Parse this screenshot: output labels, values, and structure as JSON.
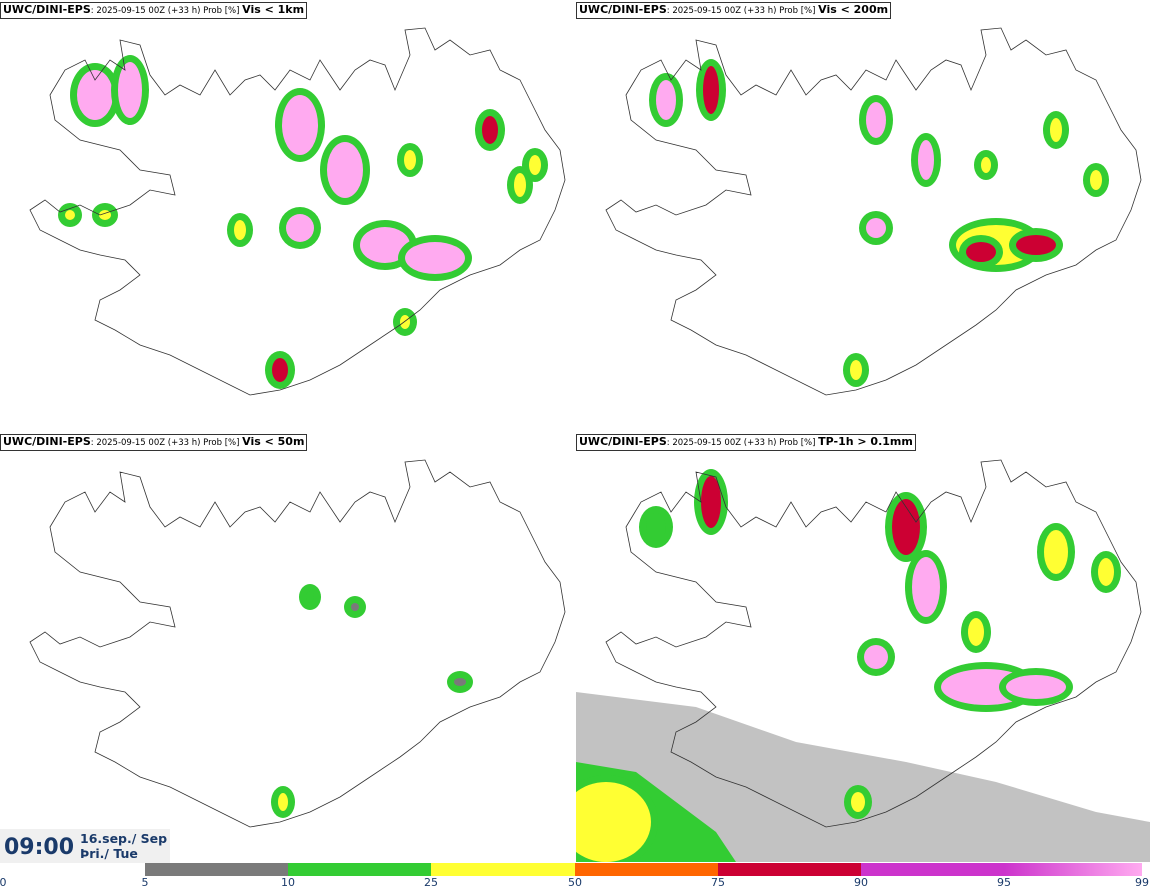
{
  "panels": [
    {
      "model": "UWC/DINI-EPS",
      "meta": ": 2025-09-15 00Z (+33 h) Prob [%] ",
      "variable": "Vis < 1km",
      "coverage": "heavy"
    },
    {
      "model": "UWC/DINI-EPS",
      "meta": ": 2025-09-15 00Z (+33 h) Prob [%] ",
      "variable": "Vis < 200m",
      "coverage": "medium"
    },
    {
      "model": "UWC/DINI-EPS",
      "meta": ": 2025-09-15 00Z (+33 h) Prob [%] ",
      "variable": "Vis < 50m",
      "coverage": "sparse"
    },
    {
      "model": "UWC/DINI-EPS",
      "meta": ": 2025-09-15 00Z (+33 h) Prob [%] ",
      "variable": "TP-1h > 0.1mm",
      "coverage": "precip"
    }
  ],
  "valid_time": {
    "time": "09:00",
    "date_line1": "16.sep./ Sep",
    "date_line2": "Þri./ Tue"
  },
  "colorbar": {
    "ticks": [
      "0",
      "5",
      "10",
      "25",
      "50",
      "75",
      "90",
      "95",
      "99"
    ],
    "colors": [
      "#ffffff",
      "#b8b8b8",
      "#7a7a7a",
      "#33cc33",
      "#ffff33",
      "#ff6600",
      "#cc0033",
      "#cc33cc",
      "#ffaaf0"
    ]
  },
  "colors": {
    "land_outline": "#333333",
    "text": "#1a3a6a"
  }
}
